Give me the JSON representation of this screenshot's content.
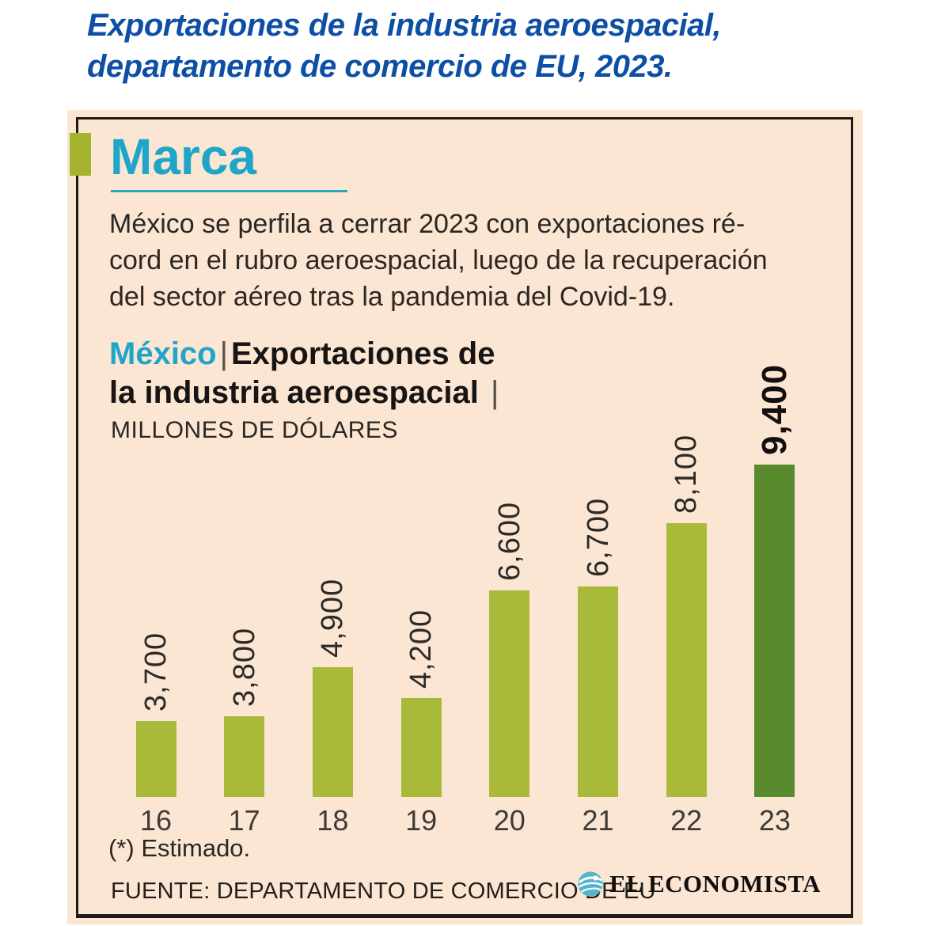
{
  "headline": {
    "lines": [
      "Exportaciones de la industria aeroespacial,",
      "departamento de comercio de EU, 2023."
    ]
  },
  "card": {
    "brand": "Marca",
    "intro_lines": [
      "México se perfila a cerrar 2023 con exportaciones ré-",
      "cord en el rubro aeroespacial, luego de la recuperación",
      "del sector aéreo tras la pandemia del Covid-19."
    ],
    "chart_header": {
      "region": "México",
      "separator": "|",
      "title_line1": "Exportaciones de",
      "title_line2": "la industria aeroespacial",
      "separator2": "|",
      "units": "MILLONES DE DÓLARES"
    },
    "footnote": "(*) Estimado.",
    "source": "FUENTE: DEPARTAMENTO DE COMERCIO DE EU",
    "logo_text": "EL ECONOMISTA"
  },
  "chart_data": {
    "type": "bar",
    "title": "México | Exportaciones de la industria aeroespacial",
    "ylabel": "MILLONES DE DÓLARES",
    "categories": [
      "16",
      "17",
      "18",
      "19",
      "20",
      "21",
      "22",
      "23"
    ],
    "values": [
      3700,
      3800,
      4900,
      4200,
      6600,
      6700,
      8100,
      9400
    ],
    "labels": [
      "3,700",
      "3,800",
      "4,900",
      "4,200",
      "6,600",
      "6,700",
      "8,100",
      "9,400"
    ],
    "highlight_index": 7,
    "grid": false,
    "legend": false,
    "ylim_implied": [
      2000,
      9400
    ],
    "bar_color": "#a9ba3a",
    "highlight_color": "#5a8a2e"
  },
  "colors": {
    "headline_blue": "#0d4fa5",
    "card_background": "#fbe5d3",
    "brand_teal": "#1fa5c7",
    "accent_green": "#a5b42f",
    "bar_green": "#a9ba3a",
    "bar_dark_green": "#5a8a2e",
    "logo_circle_blue": "#54b4cc"
  }
}
